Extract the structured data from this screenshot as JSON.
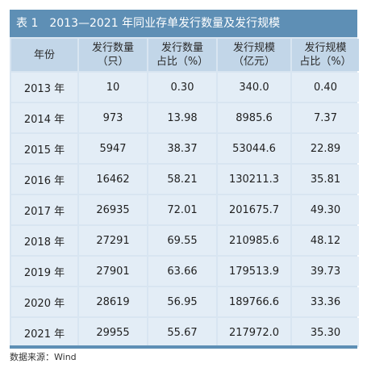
{
  "title": "表 1　2013—2021 年同业存单发行数量及发行规模",
  "headers": [
    {
      "line1": "年份",
      "line2": ""
    },
    {
      "line1": "发行数量",
      "line2": "（只）"
    },
    {
      "line1": "发行数量",
      "line2": "占比（%）"
    },
    {
      "line1": "发行规模",
      "line2": "（亿元）"
    },
    {
      "line1": "发行规模",
      "line2": "占比（%）"
    }
  ],
  "rows": [
    [
      "2013 年",
      "10",
      "0.30",
      "340.0",
      "0.40"
    ],
    [
      "2014 年",
      "973",
      "13.98",
      "8985.6",
      "7.37"
    ],
    [
      "2015 年",
      "5947",
      "38.37",
      "53044.6",
      "22.89"
    ],
    [
      "2016 年",
      "16462",
      "58.21",
      "130211.3",
      "35.81"
    ],
    [
      "2017 年",
      "26935",
      "72.01",
      "201675.7",
      "49.30"
    ],
    [
      "2018 年",
      "27291",
      "69.55",
      "210985.6",
      "48.12"
    ],
    [
      "2019 年",
      "27901",
      "63.66",
      "179513.9",
      "39.73"
    ],
    [
      "2020 年",
      "28619",
      "56.95",
      "189766.6",
      "33.36"
    ],
    [
      "2021 年",
      "29955",
      "55.67",
      "217972.0",
      "35.30"
    ]
  ],
  "source": "数据来源：Wind",
  "colors": {
    "title_bar": "#5e8fb5",
    "header_cell": "#c2d6e8",
    "body_cell": "#e3edf6"
  }
}
